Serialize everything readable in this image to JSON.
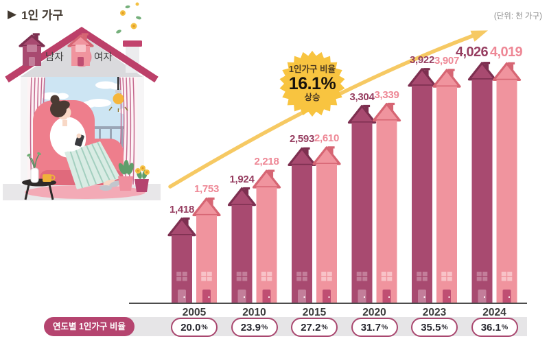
{
  "header": {
    "title_marker": "▶",
    "title_text": "1인 가구",
    "unit_label": "(단위: 천 가구)"
  },
  "legend": {
    "male_label": "남자",
    "female_label": "여자"
  },
  "callout": {
    "line1": "1인가구 비율",
    "value": "16.1%",
    "line2": "상승"
  },
  "footer": {
    "ratio_label": "연도별 1인가구 비율"
  },
  "chart_data": {
    "type": "bar",
    "title": "1인 가구",
    "unit": "천 가구",
    "categories": [
      "2005",
      "2010",
      "2015",
      "2020",
      "2023",
      "2024"
    ],
    "series": [
      {
        "name": "남자",
        "color": "#a84a70",
        "values": [
          1418,
          1924,
          2593,
          3304,
          3922,
          4026
        ],
        "labels": [
          "1,418",
          "1,924",
          "2,593",
          "3,304",
          "3,922",
          "4,026"
        ]
      },
      {
        "name": "여자",
        "color": "#f0949e",
        "values": [
          1753,
          2218,
          2610,
          3339,
          3907,
          4019
        ],
        "labels": [
          "1,753",
          "2,218",
          "2,610",
          "3,339",
          "3,907",
          "4,019"
        ]
      }
    ],
    "ratio_row": {
      "label": "연도별 1인가구 비율",
      "values": [
        "20.0",
        "23.9",
        "27.2",
        "31.7",
        "35.5",
        "36.1"
      ],
      "suffix": "%"
    },
    "annotation": "1인가구 비율 16.1% 상승",
    "xlabel": "",
    "ylabel": "",
    "ylim": [
      0,
      4200
    ],
    "grid": false,
    "legend_position": "top-left"
  },
  "colors": {
    "male_body": "#a84a70",
    "male_roof": "#7d2f50",
    "male_chimney": "#7d2f50",
    "male_window": "#c37e9a",
    "male_door": "#c37e9a",
    "male_label": "#963d60",
    "female_body": "#f0949e",
    "female_roof": "#d66573",
    "female_chimney": "#d66573",
    "female_window": "#f8c3c8",
    "female_door": "#bf4e72",
    "female_label": "#ee8795",
    "arrow": "#f6c963",
    "starburst": "#f8c440",
    "band": "#e6e5e7",
    "ratio_pill_bg": "#b5446f",
    "pill_border": "#a9476f",
    "axis": "#4d4d4d"
  }
}
